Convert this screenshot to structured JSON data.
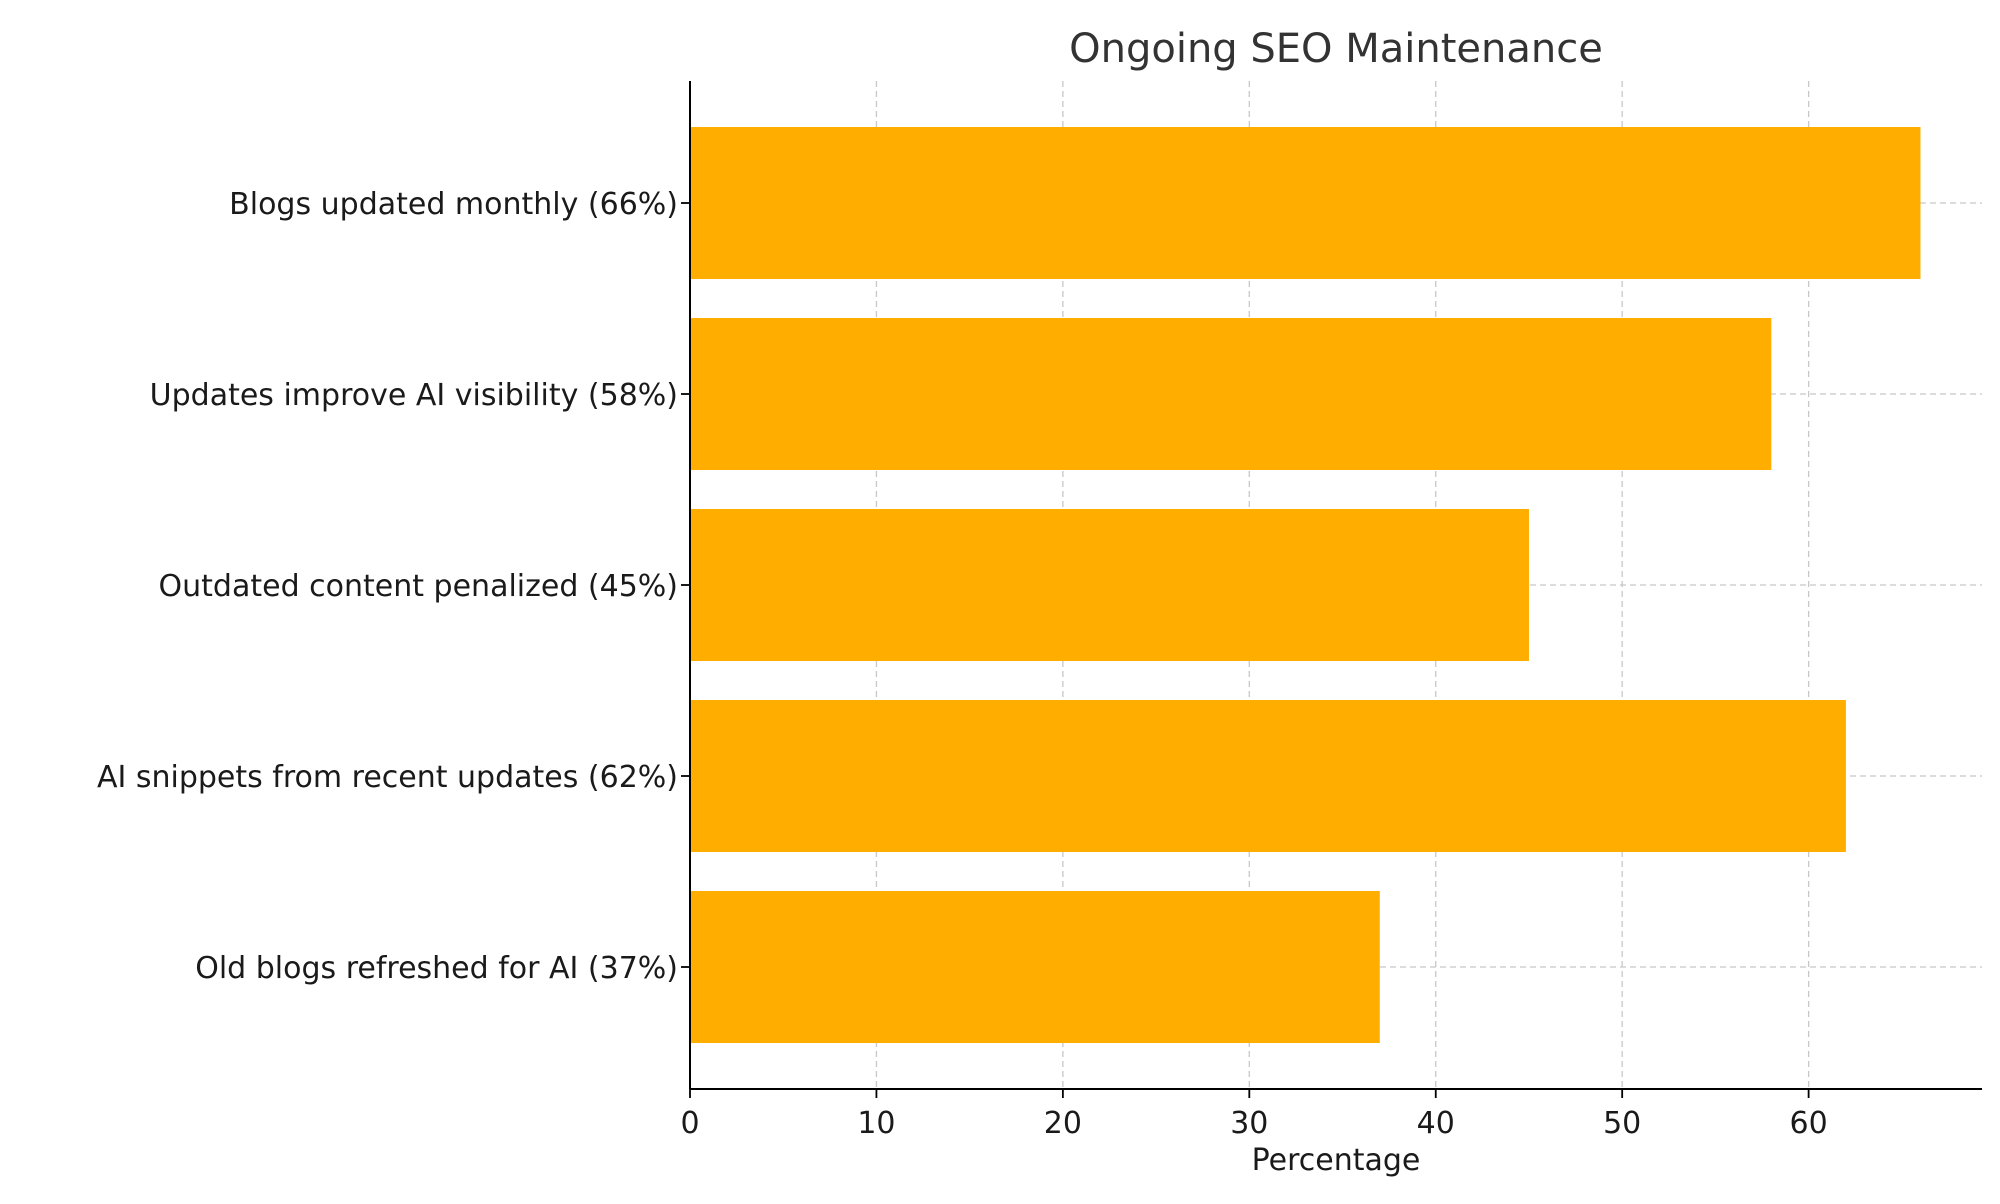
{
  "chart_data": {
    "type": "bar",
    "orientation": "horizontal",
    "title": "Ongoing SEO Maintenance",
    "xlabel": "Percentage",
    "ylabel": "",
    "categories": [
      "Blogs updated monthly (66%)",
      "Updates improve AI visibility (58%)",
      "Outdated content penalized (45%)",
      "AI snippets from recent updates (62%)",
      "Old blogs refreshed for AI (37%)"
    ],
    "values": [
      66,
      58,
      45,
      62,
      37
    ],
    "xlim": [
      0,
      69.3
    ],
    "xticks": [
      0,
      10,
      20,
      30,
      40,
      50,
      60
    ],
    "grid": true,
    "grid_style": "dashed",
    "bar_color": "#FFAE00",
    "legend": "none"
  }
}
